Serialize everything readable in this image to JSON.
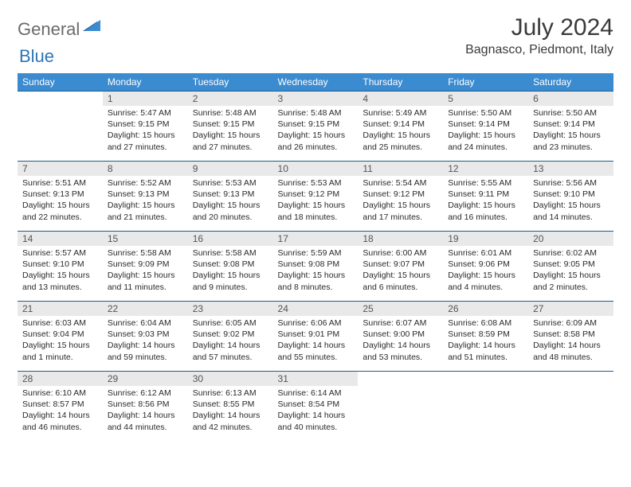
{
  "logo": {
    "part1": "General",
    "part2": "Blue"
  },
  "title": "July 2024",
  "location": "Bagnasco, Piedmont, Italy",
  "colors": {
    "header_bg": "#3b8bd0",
    "header_border": "#1f5a8a",
    "daynum_bg": "#e9e9e9",
    "text": "#2a2a2a",
    "logo_gray": "#6b6b6b",
    "logo_blue": "#2f75b5"
  },
  "weekdays": [
    "Sunday",
    "Monday",
    "Tuesday",
    "Wednesday",
    "Thursday",
    "Friday",
    "Saturday"
  ],
  "weeks": [
    [
      {
        "n": "",
        "sunrise": "",
        "sunset": "",
        "daylight": ""
      },
      {
        "n": "1",
        "sunrise": "Sunrise: 5:47 AM",
        "sunset": "Sunset: 9:15 PM",
        "daylight": "Daylight: 15 hours and 27 minutes."
      },
      {
        "n": "2",
        "sunrise": "Sunrise: 5:48 AM",
        "sunset": "Sunset: 9:15 PM",
        "daylight": "Daylight: 15 hours and 27 minutes."
      },
      {
        "n": "3",
        "sunrise": "Sunrise: 5:48 AM",
        "sunset": "Sunset: 9:15 PM",
        "daylight": "Daylight: 15 hours and 26 minutes."
      },
      {
        "n": "4",
        "sunrise": "Sunrise: 5:49 AM",
        "sunset": "Sunset: 9:14 PM",
        "daylight": "Daylight: 15 hours and 25 minutes."
      },
      {
        "n": "5",
        "sunrise": "Sunrise: 5:50 AM",
        "sunset": "Sunset: 9:14 PM",
        "daylight": "Daylight: 15 hours and 24 minutes."
      },
      {
        "n": "6",
        "sunrise": "Sunrise: 5:50 AM",
        "sunset": "Sunset: 9:14 PM",
        "daylight": "Daylight: 15 hours and 23 minutes."
      }
    ],
    [
      {
        "n": "7",
        "sunrise": "Sunrise: 5:51 AM",
        "sunset": "Sunset: 9:13 PM",
        "daylight": "Daylight: 15 hours and 22 minutes."
      },
      {
        "n": "8",
        "sunrise": "Sunrise: 5:52 AM",
        "sunset": "Sunset: 9:13 PM",
        "daylight": "Daylight: 15 hours and 21 minutes."
      },
      {
        "n": "9",
        "sunrise": "Sunrise: 5:53 AM",
        "sunset": "Sunset: 9:13 PM",
        "daylight": "Daylight: 15 hours and 20 minutes."
      },
      {
        "n": "10",
        "sunrise": "Sunrise: 5:53 AM",
        "sunset": "Sunset: 9:12 PM",
        "daylight": "Daylight: 15 hours and 18 minutes."
      },
      {
        "n": "11",
        "sunrise": "Sunrise: 5:54 AM",
        "sunset": "Sunset: 9:12 PM",
        "daylight": "Daylight: 15 hours and 17 minutes."
      },
      {
        "n": "12",
        "sunrise": "Sunrise: 5:55 AM",
        "sunset": "Sunset: 9:11 PM",
        "daylight": "Daylight: 15 hours and 16 minutes."
      },
      {
        "n": "13",
        "sunrise": "Sunrise: 5:56 AM",
        "sunset": "Sunset: 9:10 PM",
        "daylight": "Daylight: 15 hours and 14 minutes."
      }
    ],
    [
      {
        "n": "14",
        "sunrise": "Sunrise: 5:57 AM",
        "sunset": "Sunset: 9:10 PM",
        "daylight": "Daylight: 15 hours and 13 minutes."
      },
      {
        "n": "15",
        "sunrise": "Sunrise: 5:58 AM",
        "sunset": "Sunset: 9:09 PM",
        "daylight": "Daylight: 15 hours and 11 minutes."
      },
      {
        "n": "16",
        "sunrise": "Sunrise: 5:58 AM",
        "sunset": "Sunset: 9:08 PM",
        "daylight": "Daylight: 15 hours and 9 minutes."
      },
      {
        "n": "17",
        "sunrise": "Sunrise: 5:59 AM",
        "sunset": "Sunset: 9:08 PM",
        "daylight": "Daylight: 15 hours and 8 minutes."
      },
      {
        "n": "18",
        "sunrise": "Sunrise: 6:00 AM",
        "sunset": "Sunset: 9:07 PM",
        "daylight": "Daylight: 15 hours and 6 minutes."
      },
      {
        "n": "19",
        "sunrise": "Sunrise: 6:01 AM",
        "sunset": "Sunset: 9:06 PM",
        "daylight": "Daylight: 15 hours and 4 minutes."
      },
      {
        "n": "20",
        "sunrise": "Sunrise: 6:02 AM",
        "sunset": "Sunset: 9:05 PM",
        "daylight": "Daylight: 15 hours and 2 minutes."
      }
    ],
    [
      {
        "n": "21",
        "sunrise": "Sunrise: 6:03 AM",
        "sunset": "Sunset: 9:04 PM",
        "daylight": "Daylight: 15 hours and 1 minute."
      },
      {
        "n": "22",
        "sunrise": "Sunrise: 6:04 AM",
        "sunset": "Sunset: 9:03 PM",
        "daylight": "Daylight: 14 hours and 59 minutes."
      },
      {
        "n": "23",
        "sunrise": "Sunrise: 6:05 AM",
        "sunset": "Sunset: 9:02 PM",
        "daylight": "Daylight: 14 hours and 57 minutes."
      },
      {
        "n": "24",
        "sunrise": "Sunrise: 6:06 AM",
        "sunset": "Sunset: 9:01 PM",
        "daylight": "Daylight: 14 hours and 55 minutes."
      },
      {
        "n": "25",
        "sunrise": "Sunrise: 6:07 AM",
        "sunset": "Sunset: 9:00 PM",
        "daylight": "Daylight: 14 hours and 53 minutes."
      },
      {
        "n": "26",
        "sunrise": "Sunrise: 6:08 AM",
        "sunset": "Sunset: 8:59 PM",
        "daylight": "Daylight: 14 hours and 51 minutes."
      },
      {
        "n": "27",
        "sunrise": "Sunrise: 6:09 AM",
        "sunset": "Sunset: 8:58 PM",
        "daylight": "Daylight: 14 hours and 48 minutes."
      }
    ],
    [
      {
        "n": "28",
        "sunrise": "Sunrise: 6:10 AM",
        "sunset": "Sunset: 8:57 PM",
        "daylight": "Daylight: 14 hours and 46 minutes."
      },
      {
        "n": "29",
        "sunrise": "Sunrise: 6:12 AM",
        "sunset": "Sunset: 8:56 PM",
        "daylight": "Daylight: 14 hours and 44 minutes."
      },
      {
        "n": "30",
        "sunrise": "Sunrise: 6:13 AM",
        "sunset": "Sunset: 8:55 PM",
        "daylight": "Daylight: 14 hours and 42 minutes."
      },
      {
        "n": "31",
        "sunrise": "Sunrise: 6:14 AM",
        "sunset": "Sunset: 8:54 PM",
        "daylight": "Daylight: 14 hours and 40 minutes."
      },
      {
        "n": "",
        "sunrise": "",
        "sunset": "",
        "daylight": ""
      },
      {
        "n": "",
        "sunrise": "",
        "sunset": "",
        "daylight": ""
      },
      {
        "n": "",
        "sunrise": "",
        "sunset": "",
        "daylight": ""
      }
    ]
  ]
}
